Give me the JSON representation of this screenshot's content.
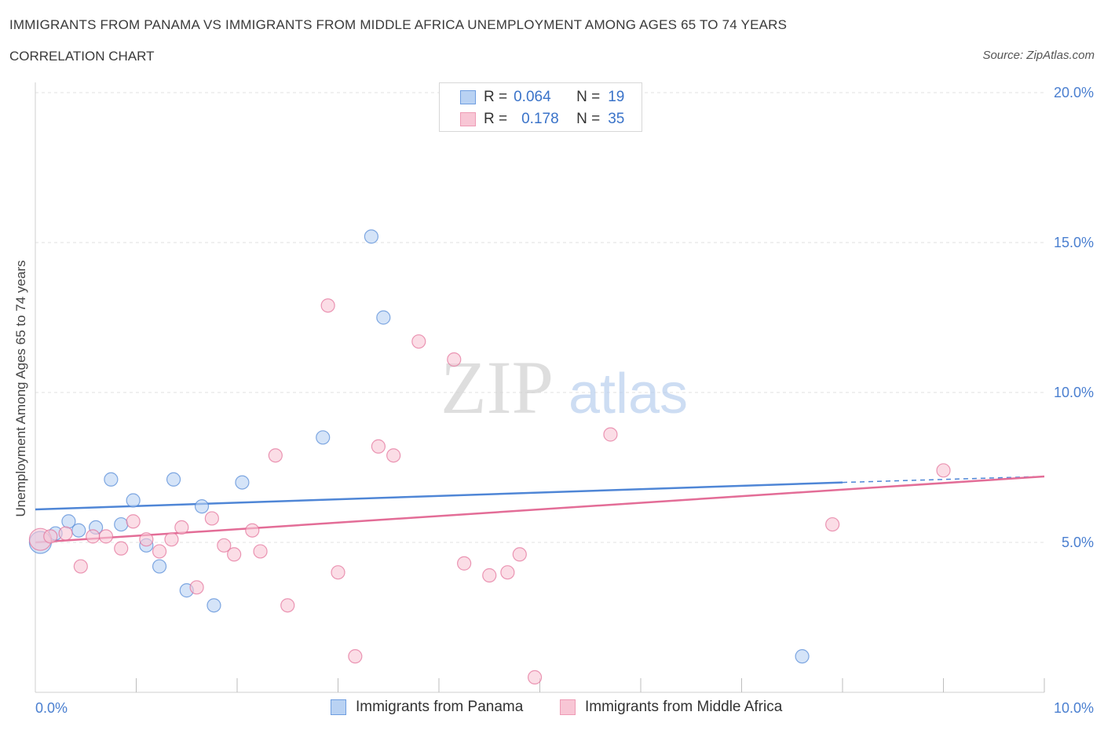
{
  "title": "IMMIGRANTS FROM PANAMA VS IMMIGRANTS FROM MIDDLE AFRICA UNEMPLOYMENT AMONG AGES 65 TO 74 YEARS",
  "subtitle": "CORRELATION CHART",
  "source": "Source: ZipAtlas.com",
  "watermark": {
    "zip": "ZIP",
    "atlas": "atlas"
  },
  "legend": [
    {
      "r_label": "R =",
      "r_value": "0.064",
      "n_label": "N =",
      "n_value": "19",
      "color": "#a9c8f2"
    },
    {
      "r_label": "R =",
      "r_value": "0.178",
      "n_label": "N =",
      "n_value": "35",
      "color": "#f6b8cc"
    }
  ],
  "chart_data": {
    "type": "scatter",
    "ylabel": "Unemployment Among Ages 65 to 74 years",
    "xlim": [
      0,
      10
    ],
    "ylim": [
      0,
      20
    ],
    "x_tick_labels": [
      {
        "value": 0,
        "label": "0.0%"
      },
      {
        "value": 10,
        "label": "10.0%"
      }
    ],
    "y_tick_labels": [
      {
        "value": 5,
        "label": "5.0%"
      },
      {
        "value": 10,
        "label": "10.0%"
      },
      {
        "value": 15,
        "label": "15.0%"
      },
      {
        "value": 20,
        "label": "20.0%"
      }
    ],
    "grid": true,
    "series": [
      {
        "name": "Immigrants from Panama",
        "color": "#4f86d6",
        "fill": "#b9d2f3",
        "trend": {
          "x0": 0,
          "y0": 6.1,
          "x1": 8.0,
          "y1": 7.0,
          "dash_to_x": 10,
          "dash_to_y": 7.2
        },
        "points": [
          [
            0.05,
            5.0
          ],
          [
            0.2,
            5.3
          ],
          [
            0.33,
            5.7
          ],
          [
            0.43,
            5.4
          ],
          [
            0.6,
            5.5
          ],
          [
            0.75,
            7.1
          ],
          [
            0.85,
            5.6
          ],
          [
            0.97,
            6.4
          ],
          [
            1.1,
            4.9
          ],
          [
            1.23,
            4.2
          ],
          [
            1.37,
            7.1
          ],
          [
            1.5,
            3.4
          ],
          [
            1.65,
            6.2
          ],
          [
            1.77,
            2.9
          ],
          [
            2.05,
            7.0
          ],
          [
            2.85,
            8.5
          ],
          [
            3.33,
            15.2
          ],
          [
            3.45,
            12.5
          ],
          [
            7.6,
            1.2
          ]
        ]
      },
      {
        "name": "Immigrants from Middle Africa",
        "color": "#e36d97",
        "fill": "#f8c6d5",
        "trend": {
          "x0": 0,
          "y0": 5.0,
          "x1": 10,
          "y1": 7.2
        },
        "points": [
          [
            0.05,
            5.1
          ],
          [
            0.15,
            5.2
          ],
          [
            0.3,
            5.3
          ],
          [
            0.45,
            4.2
          ],
          [
            0.57,
            5.2
          ],
          [
            0.7,
            5.2
          ],
          [
            0.85,
            4.8
          ],
          [
            0.97,
            5.7
          ],
          [
            1.1,
            5.1
          ],
          [
            1.23,
            4.7
          ],
          [
            1.35,
            5.1
          ],
          [
            1.45,
            5.5
          ],
          [
            1.6,
            3.5
          ],
          [
            1.75,
            5.8
          ],
          [
            1.87,
            4.9
          ],
          [
            1.97,
            4.6
          ],
          [
            2.15,
            5.4
          ],
          [
            2.23,
            4.7
          ],
          [
            2.38,
            7.9
          ],
          [
            2.5,
            2.9
          ],
          [
            2.9,
            12.9
          ],
          [
            3.0,
            4.0
          ],
          [
            3.17,
            1.2
          ],
          [
            3.4,
            8.2
          ],
          [
            3.55,
            7.9
          ],
          [
            3.8,
            11.7
          ],
          [
            4.15,
            11.1
          ],
          [
            4.25,
            4.3
          ],
          [
            4.5,
            3.9
          ],
          [
            4.68,
            4.0
          ],
          [
            4.8,
            4.6
          ],
          [
            4.95,
            0.5
          ],
          [
            5.7,
            8.6
          ],
          [
            7.9,
            5.6
          ],
          [
            9.0,
            7.4
          ]
        ]
      }
    ]
  }
}
